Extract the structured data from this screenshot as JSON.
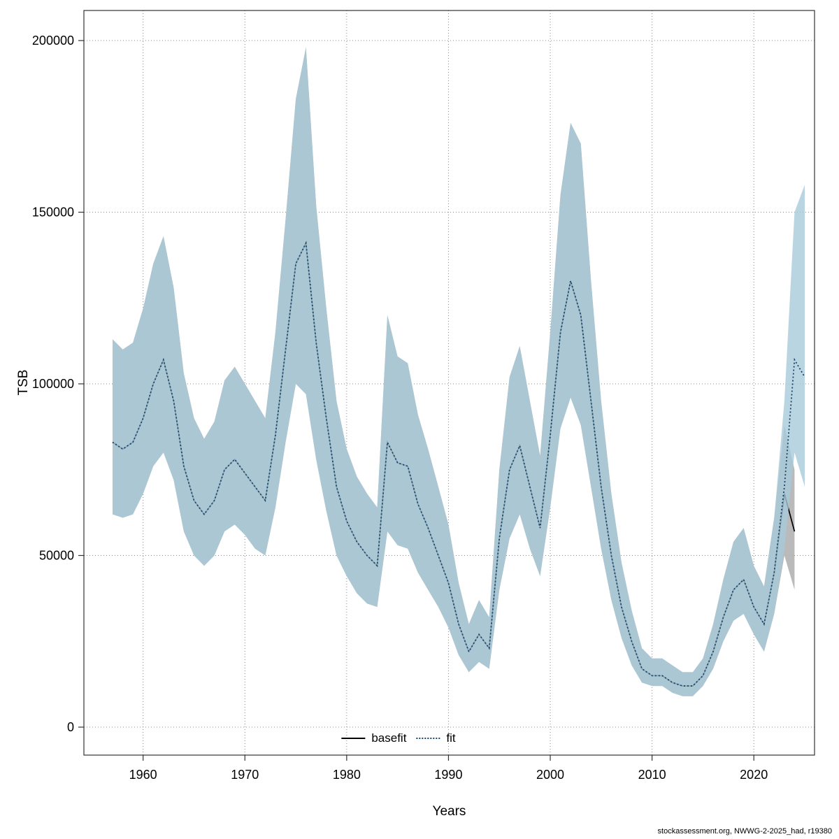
{
  "figure": {
    "xlabel": "Years",
    "ylabel": "TSB",
    "watermark": "stockassessment.org, NWWG-2-2025_had, r19380",
    "legend": {
      "basefit_label": "basefit",
      "fit_label": "fit"
    }
  },
  "chart_data": {
    "type": "line",
    "title": "",
    "xlabel": "Years",
    "ylabel": "TSB",
    "xlim": [
      1957,
      2025
    ],
    "ylim": [
      0,
      200000
    ],
    "x_ticks": [
      1960,
      1970,
      1980,
      1990,
      2000,
      2010,
      2020
    ],
    "y_ticks": [
      0,
      50000,
      100000,
      150000,
      200000
    ],
    "grid": true,
    "legend_position": "bottom-center",
    "colors": {
      "ribbon_fit": "#a9cadb",
      "ribbon_basefit": "#b3b3b3",
      "fit_line": "#16436b",
      "basefit_line": "#000000",
      "grid": "#8a8a8a",
      "frame": "#333333"
    },
    "series": [
      {
        "name": "basefit",
        "line_style": "solid",
        "x": [
          1957,
          1958,
          1959,
          1960,
          1961,
          1962,
          1963,
          1964,
          1965,
          1966,
          1967,
          1968,
          1969,
          1970,
          1971,
          1972,
          1973,
          1974,
          1975,
          1976,
          1977,
          1978,
          1979,
          1980,
          1981,
          1982,
          1983,
          1984,
          1985,
          1986,
          1987,
          1988,
          1989,
          1990,
          1991,
          1992,
          1993,
          1994,
          1995,
          1996,
          1997,
          1998,
          1999,
          2000,
          2001,
          2002,
          2003,
          2004,
          2005,
          2006,
          2007,
          2008,
          2009,
          2010,
          2011,
          2012,
          2013,
          2014,
          2015,
          2016,
          2017,
          2018,
          2019,
          2020,
          2021,
          2022,
          2023,
          2024
        ],
        "values": [
          83000,
          81000,
          83000,
          90000,
          100000,
          107000,
          95000,
          76000,
          66000,
          62000,
          66000,
          75000,
          78000,
          74000,
          70000,
          66000,
          85000,
          110000,
          135000,
          141000,
          112000,
          90000,
          70000,
          60000,
          54000,
          50000,
          47000,
          83000,
          77000,
          76000,
          65000,
          58000,
          50000,
          42000,
          30000,
          22000,
          27000,
          23000,
          55000,
          75000,
          82000,
          70000,
          58000,
          85000,
          115000,
          130000,
          120000,
          95000,
          70000,
          50000,
          35000,
          25000,
          17000,
          15000,
          15000,
          13000,
          12000,
          12000,
          15000,
          22000,
          32000,
          40000,
          43000,
          35000,
          30000,
          45000,
          68000,
          57000
        ],
        "lower": [
          62000,
          61000,
          62000,
          68000,
          76000,
          80000,
          72000,
          57000,
          50000,
          47000,
          50000,
          57000,
          59000,
          56000,
          52000,
          50000,
          64000,
          83000,
          100000,
          97000,
          78000,
          63000,
          50000,
          44000,
          39000,
          36000,
          35000,
          57000,
          53000,
          52000,
          45000,
          40000,
          35000,
          29000,
          21000,
          16000,
          19000,
          17000,
          40000,
          55000,
          62000,
          52000,
          44000,
          64000,
          87000,
          96000,
          88000,
          70000,
          52000,
          37000,
          26000,
          18000,
          13000,
          12000,
          12000,
          10000,
          9000,
          9000,
          12000,
          17000,
          25000,
          31000,
          33000,
          27000,
          22000,
          33000,
          50000,
          40000
        ],
        "upper": [
          113000,
          110000,
          112000,
          122000,
          135000,
          143000,
          128000,
          103000,
          90000,
          84000,
          89000,
          101000,
          105000,
          100000,
          95000,
          90000,
          115000,
          148000,
          183000,
          198000,
          152000,
          122000,
          95000,
          81000,
          73000,
          68000,
          64000,
          120000,
          108000,
          106000,
          91000,
          81000,
          70000,
          59000,
          42000,
          30000,
          37000,
          32000,
          75000,
          102000,
          111000,
          95000,
          79000,
          115000,
          155000,
          176000,
          170000,
          130000,
          95000,
          68000,
          48000,
          34000,
          23000,
          20000,
          20000,
          18000,
          16000,
          16000,
          20000,
          30000,
          43000,
          54000,
          58000,
          47000,
          41000,
          61000,
          88000,
          75000
        ]
      },
      {
        "name": "fit",
        "line_style": "dotted",
        "x": [
          1957,
          1958,
          1959,
          1960,
          1961,
          1962,
          1963,
          1964,
          1965,
          1966,
          1967,
          1968,
          1969,
          1970,
          1971,
          1972,
          1973,
          1974,
          1975,
          1976,
          1977,
          1978,
          1979,
          1980,
          1981,
          1982,
          1983,
          1984,
          1985,
          1986,
          1987,
          1988,
          1989,
          1990,
          1991,
          1992,
          1993,
          1994,
          1995,
          1996,
          1997,
          1998,
          1999,
          2000,
          2001,
          2002,
          2003,
          2004,
          2005,
          2006,
          2007,
          2008,
          2009,
          2010,
          2011,
          2012,
          2013,
          2014,
          2015,
          2016,
          2017,
          2018,
          2019,
          2020,
          2021,
          2022,
          2023,
          2024,
          2025
        ],
        "values": [
          83000,
          81000,
          83000,
          90000,
          100000,
          107000,
          95000,
          76000,
          66000,
          62000,
          66000,
          75000,
          78000,
          74000,
          70000,
          66000,
          85000,
          110000,
          135000,
          141000,
          112000,
          90000,
          70000,
          60000,
          54000,
          50000,
          47000,
          83000,
          77000,
          76000,
          65000,
          58000,
          50000,
          42000,
          30000,
          22000,
          27000,
          23000,
          55000,
          75000,
          82000,
          70000,
          58000,
          85000,
          115000,
          130000,
          120000,
          95000,
          70000,
          50000,
          35000,
          25000,
          17000,
          15000,
          15000,
          13000,
          12000,
          12000,
          15000,
          22000,
          32000,
          40000,
          43000,
          35000,
          30000,
          45000,
          70000,
          107000,
          102000
        ],
        "lower": [
          62000,
          61000,
          62000,
          68000,
          76000,
          80000,
          72000,
          57000,
          50000,
          47000,
          50000,
          57000,
          59000,
          56000,
          52000,
          50000,
          64000,
          83000,
          100000,
          97000,
          78000,
          63000,
          50000,
          44000,
          39000,
          36000,
          35000,
          57000,
          53000,
          52000,
          45000,
          40000,
          35000,
          29000,
          21000,
          16000,
          19000,
          17000,
          40000,
          55000,
          62000,
          52000,
          44000,
          64000,
          87000,
          96000,
          88000,
          70000,
          52000,
          37000,
          26000,
          18000,
          13000,
          12000,
          12000,
          10000,
          9000,
          9000,
          12000,
          17000,
          25000,
          31000,
          33000,
          27000,
          22000,
          33000,
          52000,
          80000,
          70000
        ],
        "upper": [
          113000,
          110000,
          112000,
          122000,
          135000,
          143000,
          128000,
          103000,
          90000,
          84000,
          89000,
          101000,
          105000,
          100000,
          95000,
          90000,
          115000,
          148000,
          183000,
          198000,
          152000,
          122000,
          95000,
          81000,
          73000,
          68000,
          64000,
          120000,
          108000,
          106000,
          91000,
          81000,
          70000,
          59000,
          42000,
          30000,
          37000,
          32000,
          75000,
          102000,
          111000,
          95000,
          79000,
          115000,
          155000,
          176000,
          170000,
          130000,
          95000,
          68000,
          48000,
          34000,
          23000,
          20000,
          20000,
          18000,
          16000,
          16000,
          20000,
          30000,
          43000,
          54000,
          58000,
          47000,
          41000,
          61000,
          95000,
          150000,
          158000
        ]
      }
    ]
  }
}
